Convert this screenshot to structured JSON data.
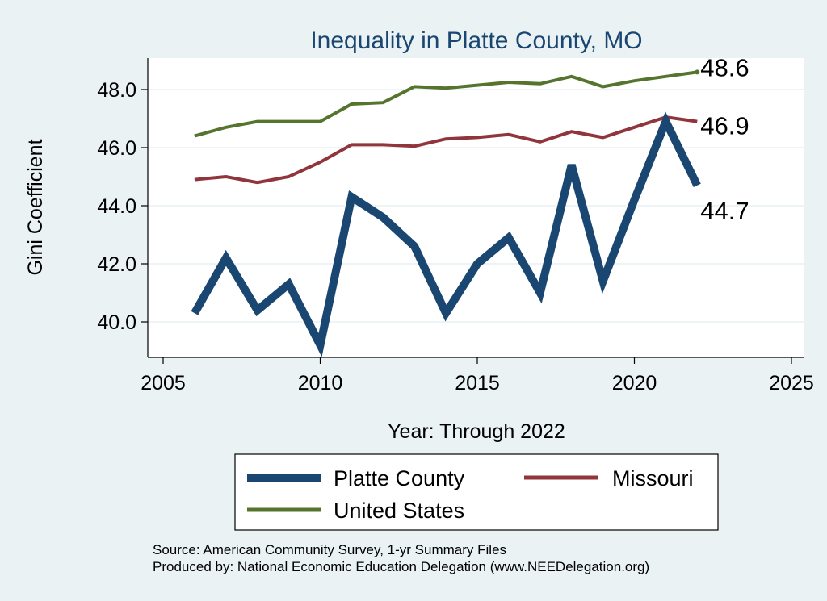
{
  "chart_data": {
    "type": "line",
    "title": "Inequality in Platte County, MO",
    "xlabel": "Year: Through 2022",
    "ylabel": "Gini Coefficient",
    "xlim": [
      2005,
      2025
    ],
    "ylim": [
      39.2,
      48.8
    ],
    "x_ticks": [
      2005,
      2010,
      2015,
      2020,
      2025
    ],
    "x_tick_labels": [
      "2005",
      "2010",
      "2015",
      "2020",
      "2025"
    ],
    "y_ticks": [
      40,
      42,
      44,
      46,
      48
    ],
    "y_tick_labels": [
      "40.0",
      "42.0",
      "44.0",
      "46.0",
      "48.0"
    ],
    "grid": true,
    "legend_position": "bottom",
    "x": [
      2006,
      2007,
      2008,
      2009,
      2010,
      2011,
      2012,
      2013,
      2014,
      2015,
      2016,
      2017,
      2018,
      2019,
      2020,
      2021,
      2022
    ],
    "series": [
      {
        "name": "Platte County",
        "color": "#1a4771",
        "values": [
          40.3,
          42.2,
          40.4,
          41.3,
          39.2,
          44.3,
          43.6,
          42.6,
          40.3,
          42.0,
          42.9,
          41.0,
          45.4,
          41.4,
          44.2,
          46.9,
          44.7
        ],
        "end_label": "44.7"
      },
      {
        "name": "Missouri",
        "color": "#90353b",
        "values": [
          44.9,
          45.0,
          44.8,
          45.0,
          45.5,
          46.1,
          46.1,
          46.05,
          46.3,
          46.35,
          46.45,
          46.2,
          46.55,
          46.35,
          46.7,
          47.05,
          46.9
        ],
        "end_label": "46.9"
      },
      {
        "name": "United States",
        "color": "#55752f",
        "values": [
          46.4,
          46.7,
          46.9,
          46.9,
          46.9,
          47.5,
          47.55,
          48.1,
          48.05,
          48.15,
          48.25,
          48.2,
          48.45,
          48.1,
          48.3,
          48.45,
          48.6
        ],
        "end_label": "48.6"
      }
    ],
    "source_lines": [
      "Source: American Community Survey, 1-yr Summary Files",
      "Produced by: National Economic Education Delegation (www.NEEDelegation.org)"
    ]
  }
}
